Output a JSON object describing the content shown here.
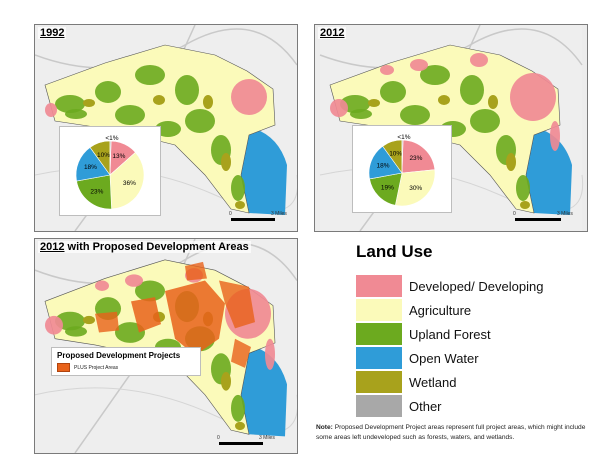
{
  "colors": {
    "developed": "#f08a94",
    "agriculture": "#fbfaba",
    "upland_forest": "#6caa1f",
    "open_water": "#2f9cd8",
    "wetland": "#a8a21c",
    "other": "#a8a8a8"
  },
  "panels": [
    {
      "label": "1992",
      "pie": {
        "slices": [
          {
            "category": "Developed/ Developing",
            "value": 13,
            "label": "13%"
          },
          {
            "category": "Agriculture",
            "value": 36,
            "label": "36%"
          },
          {
            "category": "Upland Forest",
            "value": 23,
            "label": "23%"
          },
          {
            "category": "Open Water",
            "value": 18,
            "label": "18%"
          },
          {
            "category": "Wetland",
            "value": 10,
            "label": "10%"
          },
          {
            "category": "Other",
            "value": 0.5,
            "label": "<1%"
          }
        ]
      }
    },
    {
      "label": "2012",
      "pie": {
        "slices": [
          {
            "category": "Developed/ Developing",
            "value": 23,
            "label": "23%"
          },
          {
            "category": "Agriculture",
            "value": 30,
            "label": "30%"
          },
          {
            "category": "Upland Forest",
            "value": 19,
            "label": "19%"
          },
          {
            "category": "Open Water",
            "value": 18,
            "label": "18%"
          },
          {
            "category": "Wetland",
            "value": 10,
            "label": "10%"
          },
          {
            "category": "Other",
            "value": 0.5,
            "label": "<1%"
          }
        ]
      }
    },
    {
      "label_year": "2012",
      "label_rest": "with Proposed Development Areas",
      "inset_title": "Proposed Development Projects",
      "inset_item": "PLUS Project Areas"
    }
  ],
  "legend": {
    "title": "Land Use",
    "items": [
      {
        "name": "Developed/ Developing",
        "color_key": "developed"
      },
      {
        "name": "Agriculture",
        "color_key": "agriculture"
      },
      {
        "name": "Upland Forest",
        "color_key": "upland_forest"
      },
      {
        "name": "Open Water",
        "color_key": "open_water"
      },
      {
        "name": "Wetland",
        "color_key": "wetland"
      },
      {
        "name": "Other",
        "color_key": "other"
      }
    ]
  },
  "note": {
    "label": "Note:",
    "text": "Proposed Development Project areas represent full project areas, which might include some areas left undeveloped such as forests, waters, and wetlands."
  },
  "scale": {
    "start": "0",
    "mid": "1.5",
    "end": "3 Miles"
  }
}
